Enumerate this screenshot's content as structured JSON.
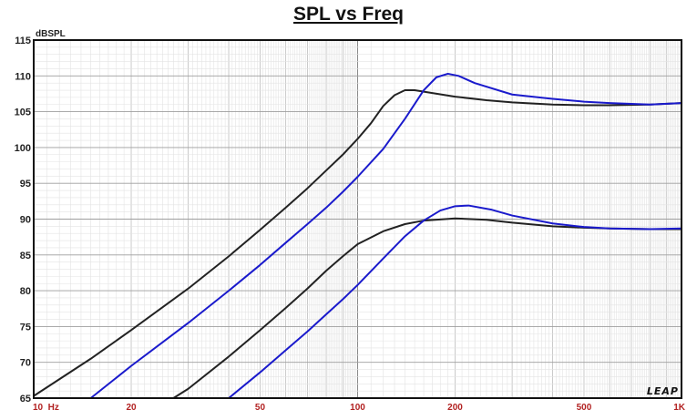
{
  "chart_data": {
    "type": "line",
    "title": "SPL vs Freq",
    "ylabel": "dBSPL",
    "xlabel": "",
    "x_scale": "log",
    "xlim": [
      10,
      1000
    ],
    "ylim": [
      65,
      115
    ],
    "grid": true,
    "y_ticks": [
      "65",
      "70",
      "75",
      "80",
      "85",
      "90",
      "95",
      "100",
      "105",
      "110",
      "115"
    ],
    "x_tick_labels": [
      {
        "value": 10,
        "label": "10  Hz"
      },
      {
        "value": 20,
        "label": "20"
      },
      {
        "value": 50,
        "label": "50"
      },
      {
        "value": 100,
        "label": "100"
      },
      {
        "value": 200,
        "label": "200"
      },
      {
        "value": 500,
        "label": "500"
      },
      {
        "value": 1000,
        "label": "1K"
      }
    ],
    "series": [
      {
        "color": "#222222",
        "points": [
          [
            10,
            65.3
          ],
          [
            15,
            70.5
          ],
          [
            20,
            74.5
          ],
          [
            30,
            80.3
          ],
          [
            40,
            84.8
          ],
          [
            50,
            88.5
          ],
          [
            60,
            91.6
          ],
          [
            70,
            94.3
          ],
          [
            80,
            96.8
          ],
          [
            90,
            99.0
          ],
          [
            100,
            101.2
          ],
          [
            110,
            103.4
          ],
          [
            120,
            105.8
          ],
          [
            130,
            107.3
          ],
          [
            140,
            108.0
          ],
          [
            150,
            108.0
          ],
          [
            165,
            107.7
          ],
          [
            200,
            107.1
          ],
          [
            250,
            106.6
          ],
          [
            300,
            106.3
          ],
          [
            400,
            106.0
          ],
          [
            500,
            105.9
          ],
          [
            600,
            105.9
          ],
          [
            800,
            106.0
          ],
          [
            1000,
            106.2
          ]
        ]
      },
      {
        "color": "#1a1acc",
        "points": [
          [
            15,
            65.0
          ],
          [
            20,
            69.5
          ],
          [
            30,
            75.5
          ],
          [
            40,
            80.0
          ],
          [
            50,
            83.6
          ],
          [
            60,
            86.7
          ],
          [
            70,
            89.3
          ],
          [
            80,
            91.6
          ],
          [
            90,
            93.8
          ],
          [
            100,
            95.9
          ],
          [
            120,
            99.8
          ],
          [
            140,
            104.0
          ],
          [
            160,
            108.0
          ],
          [
            175,
            109.8
          ],
          [
            190,
            110.3
          ],
          [
            205,
            110.0
          ],
          [
            230,
            109.0
          ],
          [
            300,
            107.4
          ],
          [
            400,
            106.8
          ],
          [
            500,
            106.4
          ],
          [
            600,
            106.2
          ],
          [
            800,
            106.0
          ],
          [
            1000,
            106.2
          ]
        ]
      },
      {
        "color": "#222222",
        "points": [
          [
            27,
            65.0
          ],
          [
            30,
            66.3
          ],
          [
            40,
            70.8
          ],
          [
            50,
            74.5
          ],
          [
            60,
            77.6
          ],
          [
            70,
            80.3
          ],
          [
            80,
            82.8
          ],
          [
            90,
            84.8
          ],
          [
            100,
            86.5
          ],
          [
            120,
            88.3
          ],
          [
            140,
            89.3
          ],
          [
            160,
            89.8
          ],
          [
            200,
            90.1
          ],
          [
            250,
            89.9
          ],
          [
            300,
            89.5
          ],
          [
            400,
            89.0
          ],
          [
            500,
            88.8
          ],
          [
            600,
            88.7
          ],
          [
            800,
            88.6
          ],
          [
            1000,
            88.6
          ]
        ]
      },
      {
        "color": "#1a1acc",
        "points": [
          [
            40,
            65.0
          ],
          [
            50,
            68.6
          ],
          [
            60,
            71.7
          ],
          [
            70,
            74.3
          ],
          [
            80,
            76.7
          ],
          [
            90,
            78.8
          ],
          [
            100,
            80.8
          ],
          [
            120,
            84.5
          ],
          [
            140,
            87.6
          ],
          [
            160,
            89.8
          ],
          [
            180,
            91.2
          ],
          [
            200,
            91.8
          ],
          [
            220,
            91.9
          ],
          [
            260,
            91.3
          ],
          [
            300,
            90.5
          ],
          [
            400,
            89.4
          ],
          [
            500,
            88.9
          ],
          [
            600,
            88.7
          ],
          [
            800,
            88.6
          ],
          [
            1000,
            88.7
          ]
        ]
      }
    ]
  }
}
